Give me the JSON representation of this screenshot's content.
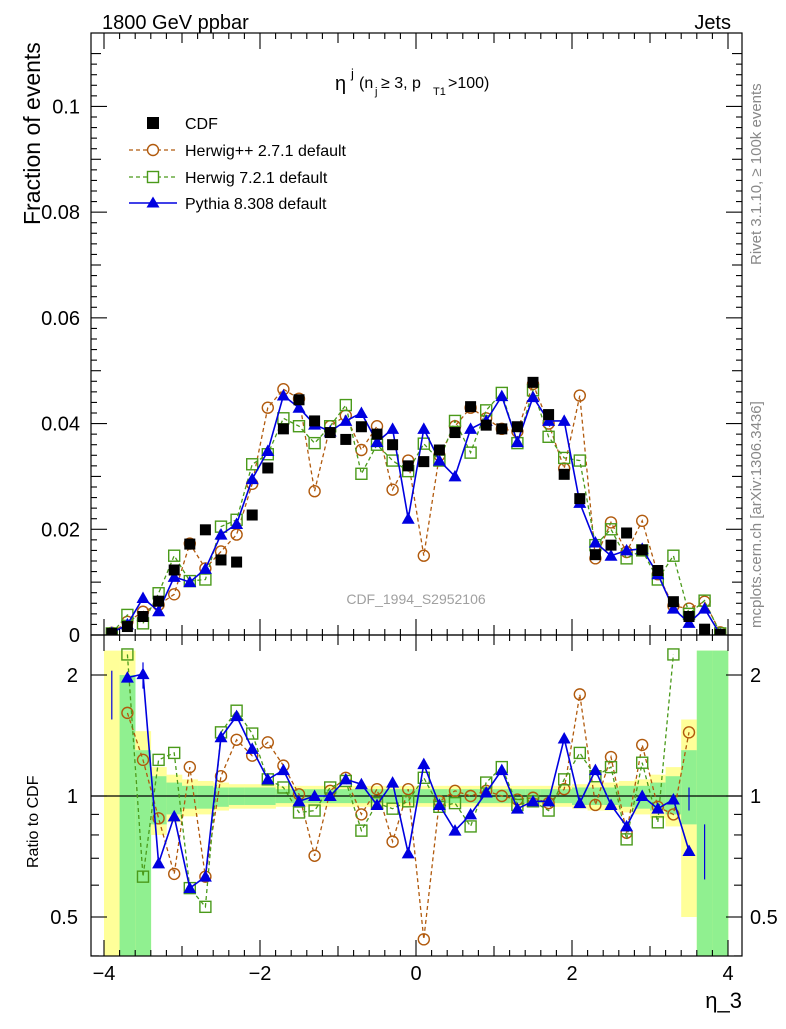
{
  "header": {
    "energy_label": "1800 GeV ppbar",
    "process_label": "Jets",
    "rivet_label": "Rivet 3.1.10, ≥ 100k events",
    "mcplots_label": "mcplots.cern.ch [arXiv:1306.3436]"
  },
  "analysis_id": "CDF_1994_S2952106",
  "plot_title": {
    "main": "η",
    "sup": "j",
    "cond_open": "(n",
    "cond_sub1": "j",
    "cond_mid": " ≥ 3, p",
    "cond_sub2": "T1",
    "cond_close": ">100)"
  },
  "upper_ylabel": "Fraction of events",
  "lower_ylabel": "Ratio to CDF",
  "xlabel": "η_3",
  "legend": {
    "cdf": "CDF",
    "herwigpp": "Herwig++ 2.7.1 default",
    "herwig7": "Herwig 7.2.1 default",
    "pythia": "Pythia 8.308 default"
  },
  "colors": {
    "cdf": "#000000",
    "herwigpp": "#b15a0d",
    "herwig7": "#4a9a1a",
    "pythia": "#0000e0",
    "band_inner": "#90f090",
    "band_outer": "#ffff99"
  },
  "chart_data": {
    "type": "scatter",
    "x": [
      -3.9,
      -3.7,
      -3.5,
      -3.3,
      -3.1,
      -2.9,
      -2.7,
      -2.5,
      -2.3,
      -2.1,
      -1.9,
      -1.7,
      -1.5,
      -1.3,
      -1.1,
      -0.9,
      -0.7,
      -0.5,
      -0.3,
      -0.1,
      0.1,
      0.3,
      0.5,
      0.7,
      0.9,
      1.1,
      1.3,
      1.5,
      1.7,
      1.9,
      2.1,
      2.3,
      2.5,
      2.7,
      2.9,
      3.1,
      3.3,
      3.5,
      3.7,
      3.9
    ],
    "xlim": [
      -4.15,
      4.15
    ],
    "upper_ylim": [
      0,
      0.1135
    ],
    "lower_ylim": [
      0.33,
      2.3
    ],
    "x_ticks": [
      -4,
      -2,
      0,
      2,
      4
    ],
    "upper_y_ticks": [
      0,
      0.02,
      0.04,
      0.06,
      0.08,
      0.1
    ],
    "upper_y_tick_labels": [
      "0",
      "0.02",
      "0.04",
      "0.06",
      "0.08",
      "0.1"
    ],
    "lower_y_ticks": [
      0.5,
      1,
      2
    ],
    "lower_y_tick_labels": [
      "0.5",
      "1",
      "2"
    ],
    "series": [
      {
        "name": "CDF",
        "key": "cdf",
        "values": [
          0.0003,
          0.0016,
          0.0035,
          0.0064,
          0.0123,
          0.0172,
          0.0199,
          0.0142,
          0.0138,
          0.0227,
          0.0316,
          0.039,
          0.0445,
          0.0405,
          0.0383,
          0.037,
          0.0394,
          0.038,
          0.036,
          0.032,
          0.0328,
          0.035,
          0.0383,
          0.0432,
          0.0397,
          0.039,
          0.0394,
          0.0478,
          0.0417,
          0.0304,
          0.0258,
          0.0152,
          0.017,
          0.0193,
          0.0161,
          0.0122,
          0.0063,
          0.0035,
          0.0011,
          0.0001
        ]
      },
      {
        "name": "Herwig++ 2.7.1 default",
        "key": "herwigpp",
        "values": [
          0.0004,
          0.0025,
          0.0044,
          0.0057,
          0.0077,
          0.0173,
          0.0126,
          0.0158,
          0.019,
          0.0286,
          0.043,
          0.0465,
          0.0447,
          0.0272,
          0.0395,
          0.0415,
          0.035,
          0.0395,
          0.0275,
          0.033,
          0.015,
          0.034,
          0.0395,
          0.043,
          0.041,
          0.039,
          0.0385,
          0.0475,
          0.04,
          0.0315,
          0.0453,
          0.0145,
          0.0213,
          0.0157,
          0.0216,
          0.0115,
          0.0055,
          0.005,
          0.0063,
          0.0005
        ]
      },
      {
        "name": "Herwig 7.2.1 default",
        "key": "herwig7",
        "values": [
          0.0003,
          0.0038,
          0.0022,
          0.0079,
          0.015,
          0.0102,
          0.0105,
          0.0205,
          0.0218,
          0.0323,
          0.0342,
          0.041,
          0.0395,
          0.0363,
          0.0395,
          0.0435,
          0.0305,
          0.036,
          0.033,
          0.031,
          0.0362,
          0.033,
          0.0405,
          0.0345,
          0.0425,
          0.0458,
          0.0363,
          0.0463,
          0.0375,
          0.0335,
          0.033,
          0.017,
          0.02,
          0.0145,
          0.016,
          0.0105,
          0.015,
          0.004,
          0.0065,
          0.0003
        ]
      },
      {
        "name": "Pythia 8.308 default",
        "key": "pythia",
        "values": [
          0.0004,
          0.002,
          0.007,
          0.0045,
          0.011,
          0.01,
          0.0125,
          0.019,
          0.021,
          0.0295,
          0.0348,
          0.0453,
          0.043,
          0.0398,
          0.0385,
          0.0405,
          0.042,
          0.0365,
          0.039,
          0.022,
          0.039,
          0.033,
          0.03,
          0.039,
          0.0405,
          0.0452,
          0.0365,
          0.045,
          0.0405,
          0.0405,
          0.025,
          0.0175,
          0.015,
          0.016,
          0.0163,
          0.0115,
          0.005,
          0.0023,
          0.005,
          0.0001
        ]
      }
    ],
    "ratios": {
      "herwigpp": [
        null,
        1.61,
        1.23,
        0.88,
        0.64,
        1.18,
        0.63,
        1.12,
        1.38,
        1.26,
        1.36,
        1.19,
        1.01,
        0.71,
        1.03,
        1.11,
        0.9,
        1.04,
        0.77,
        1.04,
        0.44,
        0.97,
        1.03,
        1.0,
        1.03,
        1.0,
        0.98,
        0.99,
        0.96,
        1.04,
        1.79,
        0.95,
        1.25,
        0.81,
        1.34,
        0.94,
        0.9,
        1.44,
        null,
        null
      ],
      "herwig7": [
        null,
        2.25,
        0.63,
        1.23,
        1.28,
        0.59,
        0.53,
        1.44,
        1.63,
        1.43,
        1.1,
        1.05,
        0.91,
        0.92,
        1.05,
        1.09,
        0.82,
        0.96,
        0.93,
        0.97,
        1.11,
        0.94,
        0.96,
        0.84,
        1.08,
        1.18,
        0.95,
        0.97,
        0.92,
        1.1,
        1.28,
        1.12,
        1.18,
        0.78,
        1.21,
        0.86,
        2.25,
        null,
        null,
        null
      ],
      "pythia": [
        null,
        1.97,
        2.01,
        0.68,
        0.89,
        0.59,
        0.63,
        1.4,
        1.58,
        1.31,
        1.1,
        1.16,
        0.97,
        1.0,
        1.0,
        1.1,
        1.07,
        0.95,
        1.08,
        0.72,
        1.2,
        0.95,
        0.82,
        0.9,
        1.02,
        1.16,
        0.93,
        0.97,
        0.97,
        1.39,
        0.96,
        1.16,
        0.95,
        0.84,
        1.0,
        0.93,
        0.98,
        0.73,
        null,
        null
      ]
    },
    "bands": {
      "inner": [
        2.0,
        0.1,
        0.1,
        0.85,
        0.9,
        0.93,
        0.93,
        0.94,
        0.95,
        0.95,
        0.95,
        0.96,
        0.96,
        0.96,
        0.96,
        0.96,
        0.96,
        0.96,
        0.96,
        0.96,
        0.96,
        0.96,
        0.96,
        0.96,
        0.96,
        0.96,
        0.96,
        0.96,
        0.96,
        0.96,
        0.95,
        0.95,
        0.95,
        0.94,
        0.93,
        0.92,
        0.9,
        0.85,
        0.1,
        0.1
      ],
      "inner_hi": [
        2.0,
        2.0,
        1.3,
        1.12,
        1.08,
        1.06,
        1.06,
        1.05,
        1.05,
        1.05,
        1.05,
        1.04,
        1.04,
        1.04,
        1.04,
        1.04,
        1.04,
        1.04,
        1.04,
        1.04,
        1.04,
        1.04,
        1.04,
        1.04,
        1.04,
        1.04,
        1.04,
        1.04,
        1.04,
        1.04,
        1.05,
        1.05,
        1.05,
        1.06,
        1.06,
        1.08,
        1.12,
        1.3,
        2.3,
        2.3
      ],
      "outer_lo": [
        0.1,
        0.1,
        0.1,
        0.8,
        0.86,
        0.89,
        0.9,
        0.92,
        0.93,
        0.93,
        0.93,
        0.94,
        0.94,
        0.94,
        0.94,
        0.94,
        0.94,
        0.94,
        0.94,
        0.94,
        0.94,
        0.94,
        0.94,
        0.94,
        0.94,
        0.94,
        0.94,
        0.94,
        0.94,
        0.94,
        0.93,
        0.92,
        0.92,
        0.91,
        0.9,
        0.88,
        0.84,
        0.5,
        0.1,
        0.1
      ],
      "outer_hi": [
        2.3,
        2.3,
        1.45,
        1.18,
        1.13,
        1.1,
        1.09,
        1.08,
        1.07,
        1.07,
        1.07,
        1.06,
        1.06,
        1.06,
        1.06,
        1.06,
        1.06,
        1.06,
        1.06,
        1.06,
        1.06,
        1.06,
        1.06,
        1.06,
        1.06,
        1.06,
        1.06,
        1.06,
        1.06,
        1.06,
        1.07,
        1.08,
        1.08,
        1.09,
        1.1,
        1.13,
        1.18,
        1.55,
        2.3,
        2.3
      ]
    }
  }
}
